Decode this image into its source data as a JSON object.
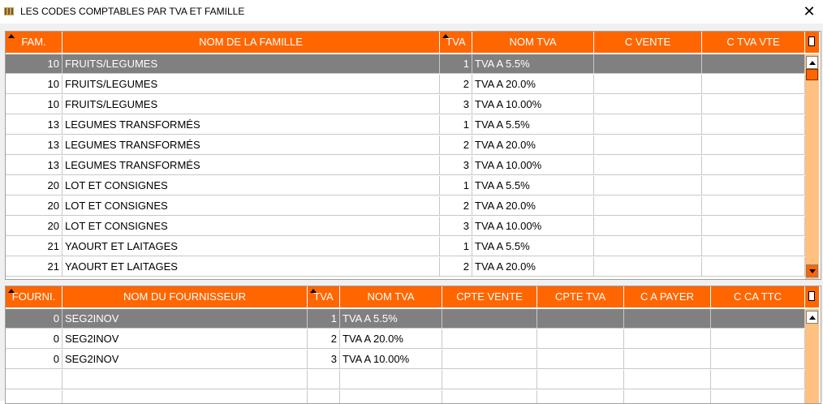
{
  "window": {
    "title": "LES CODES COMPTABLES PAR TVA ET FAMILLE",
    "close_icon": "close-icon"
  },
  "families_table": {
    "headers": [
      "FAM.",
      "NOM DE LA FAMILLE",
      "TVA",
      "NOM TVA",
      "C VENTE",
      "C TVA VTE"
    ],
    "sorted_columns": [
      "FAM.",
      "TVA"
    ],
    "selected_row": 0,
    "rows": [
      [
        "10",
        "FRUITS/LEGUMES",
        "1",
        "TVA A 5.5%",
        "",
        ""
      ],
      [
        "10",
        "FRUITS/LEGUMES",
        "2",
        "TVA A 20.0%",
        "",
        ""
      ],
      [
        "10",
        "FRUITS/LEGUMES",
        "3",
        "TVA A 10.00%",
        "",
        ""
      ],
      [
        "13",
        "LEGUMES TRANSFORMÉS",
        "1",
        "TVA A 5.5%",
        "",
        ""
      ],
      [
        "13",
        "LEGUMES TRANSFORMÉS",
        "2",
        "TVA A 20.0%",
        "",
        ""
      ],
      [
        "13",
        "LEGUMES TRANSFORMÉS",
        "3",
        "TVA A 10.00%",
        "",
        ""
      ],
      [
        "20",
        "LOT ET CONSIGNES",
        "1",
        "TVA A 5.5%",
        "",
        ""
      ],
      [
        "20",
        "LOT ET CONSIGNES",
        "2",
        "TVA A 20.0%",
        "",
        ""
      ],
      [
        "20",
        "LOT ET CONSIGNES",
        "3",
        "TVA A 10.00%",
        "",
        ""
      ],
      [
        "21",
        "YAOURT ET LAITAGES",
        "1",
        "TVA A 5.5%",
        "",
        ""
      ],
      [
        "21",
        "YAOURT ET LAITAGES",
        "2",
        "TVA A 20.0%",
        "",
        ""
      ]
    ]
  },
  "suppliers_table": {
    "headers": [
      "FOURNI.",
      "NOM DU FOURNISSEUR",
      "TVA",
      "NOM TVA",
      "CPTE VENTE",
      "CPTE TVA",
      "C A PAYER",
      "C CA TTC"
    ],
    "sorted_columns": [
      "FOURNI.",
      "TVA"
    ],
    "selected_row": 0,
    "rows": [
      [
        "0",
        "SEG2INOV",
        "1",
        "TVA A 5.5%",
        "",
        "",
        "",
        ""
      ],
      [
        "0",
        "SEG2INOV",
        "2",
        "TVA A 20.0%",
        "",
        "",
        "",
        ""
      ],
      [
        "0",
        "SEG2INOV",
        "3",
        "TVA A 10.00%",
        "",
        "",
        "",
        ""
      ],
      [
        "",
        "",
        "",
        "",
        "",
        "",
        "",
        ""
      ],
      [
        "",
        "",
        "",
        "",
        "",
        "",
        "",
        ""
      ]
    ]
  },
  "colors": {
    "header_bg": "#ff6600",
    "header_text": "#ffffff",
    "selected_row_bg": "#808080",
    "scrollbar_track": "#ffc080"
  }
}
